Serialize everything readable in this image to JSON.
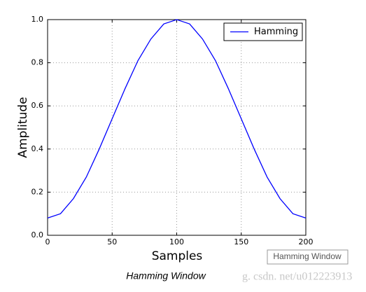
{
  "chart_data": {
    "type": "line",
    "xlabel": "Samples",
    "ylabel": "Amplitude",
    "x": [
      0,
      10,
      20,
      30,
      40,
      50,
      60,
      70,
      80,
      90,
      100,
      110,
      120,
      130,
      140,
      150,
      160,
      170,
      180,
      190,
      200
    ],
    "series": [
      {
        "name": "Hamming",
        "color": "#0000ff",
        "values": [
          0.08,
          0.1,
          0.17,
          0.27,
          0.4,
          0.54,
          0.68,
          0.81,
          0.91,
          0.98,
          1.0,
          0.98,
          0.91,
          0.81,
          0.68,
          0.54,
          0.4,
          0.27,
          0.17,
          0.1,
          0.08
        ]
      }
    ],
    "xlim": [
      0,
      200
    ],
    "xticks": [
      0,
      50,
      100,
      150,
      200
    ],
    "ylim": [
      0,
      1
    ],
    "yticks": [
      {
        "value": 0,
        "label": "0.0"
      },
      0.2,
      0.4,
      0.6,
      0.8,
      {
        "value": 1,
        "label": "1.0"
      }
    ],
    "grid": true,
    "legend": "upper right"
  },
  "caption": "Hamming Window",
  "tooltip": "Hamming Window",
  "watermark": "g. csdn. net/u012223913"
}
